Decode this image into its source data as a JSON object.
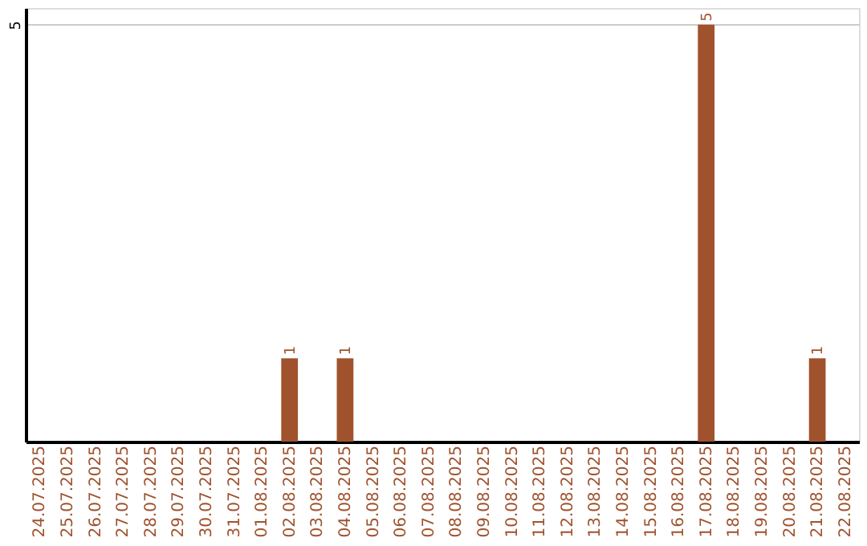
{
  "chart_data": {
    "type": "bar",
    "categories": [
      "24.07.2025",
      "25.07.2025",
      "26.07.2025",
      "27.07.2025",
      "28.07.2025",
      "29.07.2025",
      "30.07.2025",
      "31.07.2025",
      "01.08.2025",
      "02.08.2025",
      "03.08.2025",
      "04.08.2025",
      "05.08.2025",
      "06.08.2025",
      "07.08.2025",
      "08.08.2025",
      "09.08.2025",
      "10.08.2025",
      "11.08.2025",
      "12.08.2025",
      "13.08.2025",
      "14.08.2025",
      "15.08.2025",
      "16.08.2025",
      "17.08.2025",
      "18.08.2025",
      "19.08.2025",
      "20.08.2025",
      "21.08.2025",
      "22.08.2025"
    ],
    "values": [
      0,
      0,
      0,
      0,
      0,
      0,
      0,
      0,
      0,
      1,
      0,
      1,
      0,
      0,
      0,
      0,
      0,
      0,
      0,
      0,
      0,
      0,
      0,
      0,
      5,
      0,
      0,
      0,
      1,
      0
    ],
    "value_labels": [
      null,
      null,
      null,
      null,
      null,
      null,
      null,
      null,
      null,
      "1",
      null,
      "1",
      null,
      null,
      null,
      null,
      null,
      null,
      null,
      null,
      null,
      null,
      null,
      null,
      "5",
      null,
      null,
      null,
      "1",
      null
    ],
    "color": "#a0522d",
    "ylim": [
      0,
      5.2
    ],
    "yticks": [
      5
    ],
    "grid": "y"
  }
}
